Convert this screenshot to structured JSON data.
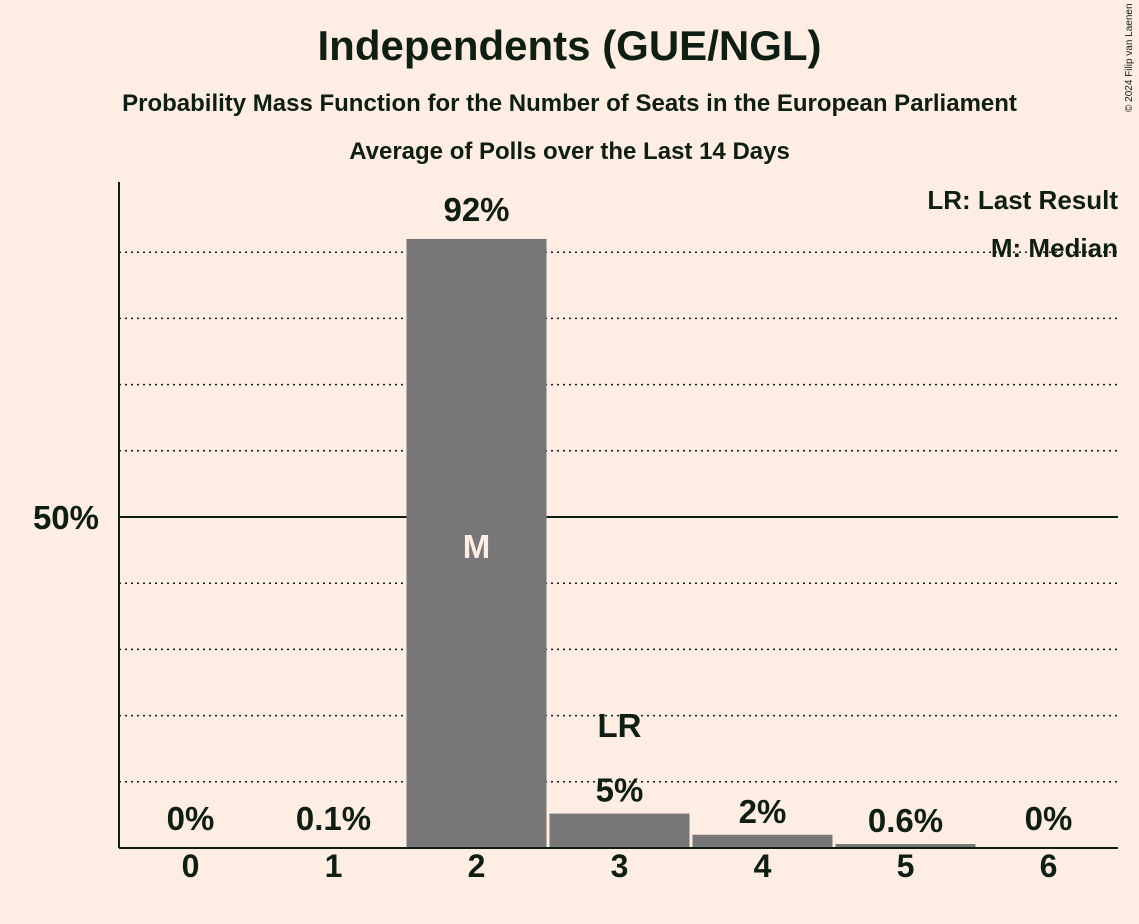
{
  "title": "Independents (GUE/NGL)",
  "subtitle": "Probability Mass Function for the Number of Seats in the European Parliament",
  "subtitle2": "Average of Polls over the Last 14 Days",
  "copyright": "© 2024 Filip van Laenen",
  "chart_data": {
    "type": "bar",
    "categories": [
      "0",
      "1",
      "2",
      "3",
      "4",
      "5",
      "6"
    ],
    "values": [
      0,
      0.1,
      92,
      5,
      2,
      0.6,
      0
    ],
    "data_labels": [
      "0%",
      "0.1%",
      "92%",
      "5%",
      "2%",
      "0.6%",
      "0%"
    ],
    "bar_values_drawn": [
      0,
      0.1,
      92,
      5.2,
      2,
      0.6,
      0
    ],
    "ylim": [
      0,
      100
    ],
    "ytick_label": "50%",
    "ytick_value": 50,
    "grid": true,
    "median_seat": "2",
    "median_label": "M",
    "last_result_seat": "3",
    "last_result_label": "LR",
    "legend": [
      "LR: Last Result",
      "M: Median"
    ],
    "legend_position": "top-right",
    "bar_color": "#777777",
    "axis_color": "#0F1E13"
  }
}
